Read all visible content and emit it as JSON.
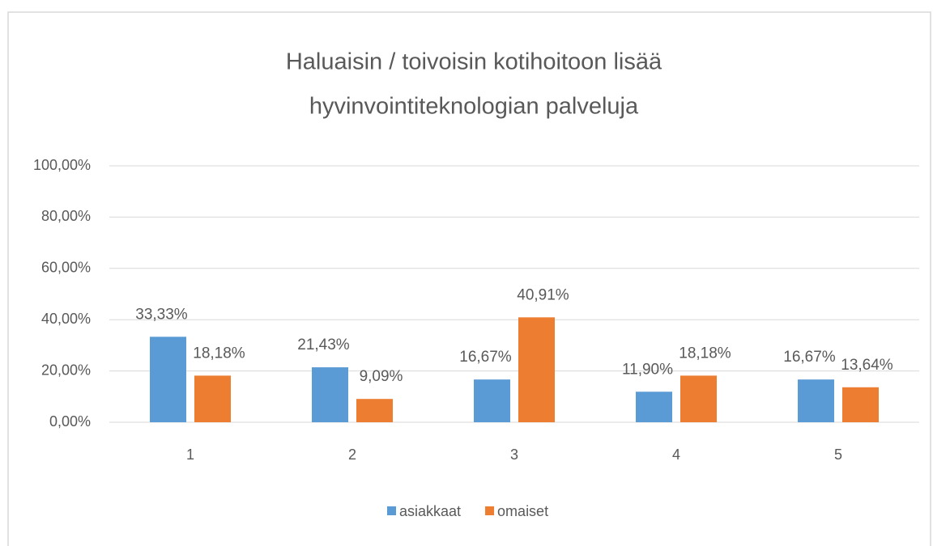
{
  "chart_data": {
    "type": "bar",
    "title": [
      "Haluaisin / toivoisin kotihoitoon lisää",
      "hyvinvointiteknologian palveluja"
    ],
    "categories": [
      "1",
      "2",
      "3",
      "4",
      "5"
    ],
    "series": [
      {
        "name": "asiakkaat",
        "color": "#5b9bd5",
        "values": [
          33.33,
          21.43,
          16.67,
          11.9,
          16.67
        ],
        "value_labels": [
          "33,33%",
          "21,43%",
          "16,67%",
          "11,90%",
          "16,67%"
        ]
      },
      {
        "name": "omaiset",
        "color": "#ed7d31",
        "values": [
          18.18,
          9.09,
          40.91,
          18.18,
          13.64
        ],
        "value_labels": [
          "18,18%",
          "9,09%",
          "40,91%",
          "18,18%",
          "13,64%"
        ]
      }
    ],
    "ylim": [
      0,
      100
    ],
    "yticks": [
      {
        "value": 0,
        "label": "0,00%"
      },
      {
        "value": 20,
        "label": "20,00%"
      },
      {
        "value": 40,
        "label": "40,00%"
      },
      {
        "value": 60,
        "label": "60,00%"
      },
      {
        "value": 80,
        "label": "80,00%"
      },
      {
        "value": 100,
        "label": "100,00%"
      }
    ],
    "grid": true,
    "legend": "bottom"
  }
}
